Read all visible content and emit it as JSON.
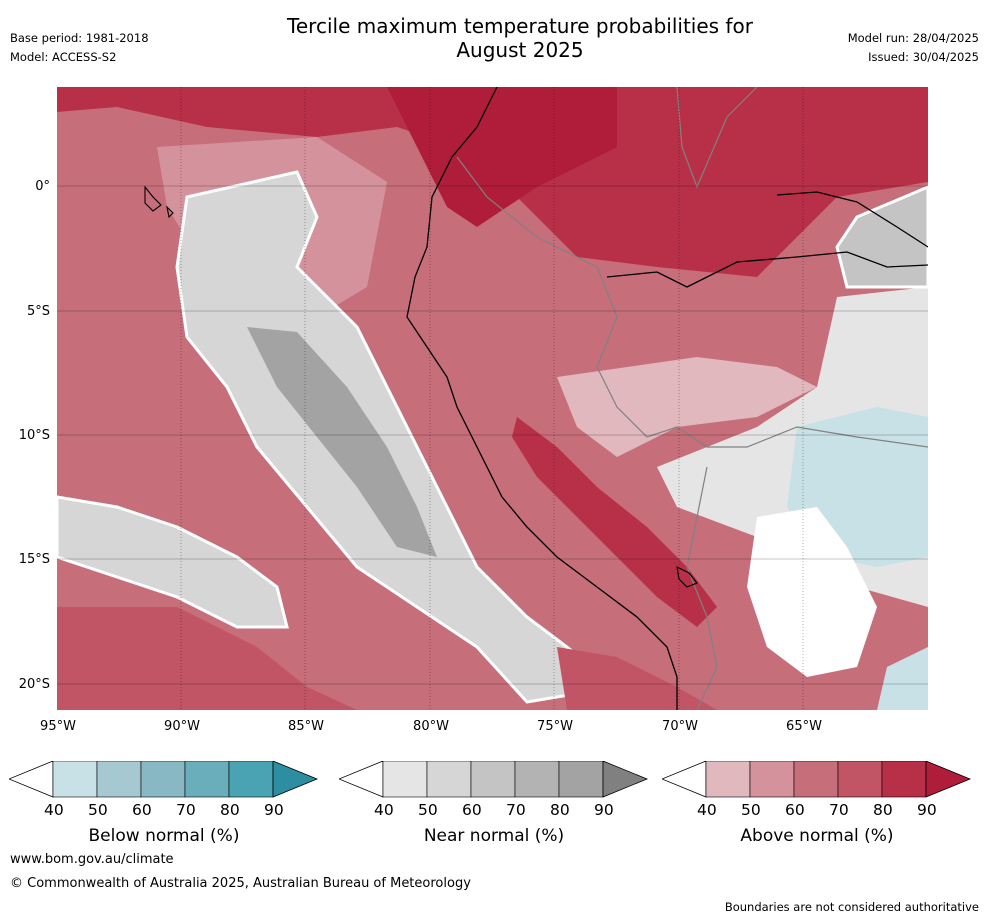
{
  "header": {
    "base_period": "Base period: 1981-2018",
    "model": "Model: ACCESS-S2",
    "title_line1": "Tercile maximum temperature probabilities for",
    "title_line2": "August 2025",
    "model_run": "Model run: 28/04/2025",
    "issued": "Issued: 30/04/2025"
  },
  "map": {
    "lat_labels": [
      "0°",
      "5°S",
      "10°S",
      "15°S",
      "20°S"
    ],
    "lon_labels": [
      "95°W",
      "90°W",
      "85°W",
      "80°W",
      "75°W",
      "70°W",
      "65°W"
    ]
  },
  "colorbars": [
    {
      "title": "Below normal (%)",
      "ticks": [
        "40",
        "50",
        "60",
        "70",
        "80",
        "90"
      ],
      "colors": [
        "#ffffff",
        "#c8e1e6",
        "#a6c9d1",
        "#88b8c4",
        "#69aeba",
        "#4aa3b3",
        "#2d8ea1"
      ]
    },
    {
      "title": "Near normal (%)",
      "ticks": [
        "40",
        "50",
        "60",
        "70",
        "80",
        "90"
      ],
      "colors": [
        "#ffffff",
        "#e5e5e5",
        "#d6d6d6",
        "#c4c4c4",
        "#b3b3b3",
        "#a3a3a3",
        "#808080"
      ]
    },
    {
      "title": "Above normal (%)",
      "ticks": [
        "40",
        "50",
        "60",
        "70",
        "80",
        "90"
      ],
      "colors": [
        "#ffffff",
        "#e1b8bd",
        "#d4939c",
        "#c76e7b",
        "#c15565",
        "#b83048",
        "#b01d3a"
      ]
    }
  ],
  "footer": {
    "url": "www.bom.gov.au/climate",
    "copyright": "© Commonwealth of Australia 2025, Australian Bureau of Meteorology",
    "disclaimer": "Boundaries are not considered authoritative"
  }
}
